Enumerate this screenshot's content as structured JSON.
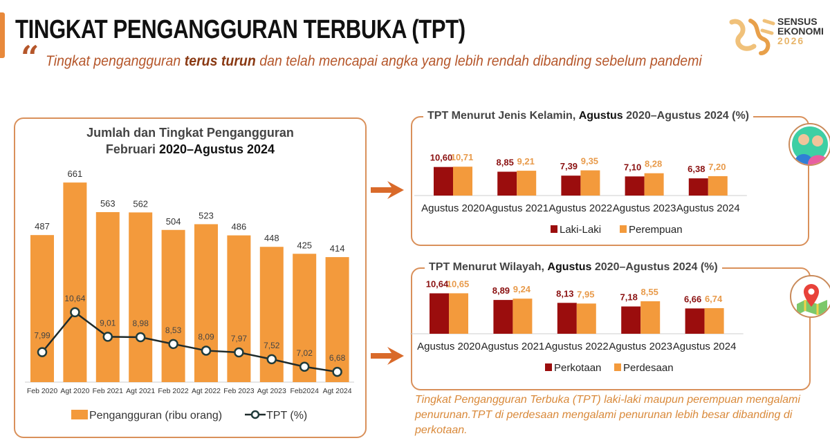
{
  "header": {
    "title": "TINGKAT PENGANGGURAN TERBUKA (TPT)",
    "subtitle_pre": "Tingkat pengangguran ",
    "subtitle_bold": "terus turun",
    "subtitle_post": " dan telah mencapai angka yang lebih rendah dibanding sebelum pandemi",
    "logo": {
      "line1": "SENSUS",
      "line2": "EKONOMI",
      "line3": "2026"
    },
    "quote_icon": "quote-icon"
  },
  "colors": {
    "orange": "#f39a3c",
    "dark_red": "#9b0d0d",
    "accent": "#e8893b",
    "line": "#1f2b2b"
  },
  "note": "Tingkat Pengangguran Terbuka (TPT) laki-laki maupun perempuan mengalami penurunan.TPT di perdesaan mengalami penurunan lebih besar dibanding di perkotaan.",
  "chart_data": [
    {
      "type": "bar+line",
      "title_line1": "Jumlah dan Tingkat Pengangguran",
      "title_line2_pre": "Februari ",
      "title_line2_bold": "2020–Agustus 2024",
      "categories": [
        "Feb 2020",
        "Agt 2020",
        "Feb 2021",
        "Agt 2021",
        "Feb 2022",
        "Agt 2022",
        "Feb 2023",
        "Agt 2023",
        "Feb2024",
        "Agt 2024"
      ],
      "series": [
        {
          "name": "Pengangguran (ribu orang)",
          "type": "bar",
          "values": [
            487,
            661,
            563,
            562,
            504,
            523,
            486,
            448,
            425,
            414
          ]
        },
        {
          "name": "TPT (%)",
          "type": "line",
          "values": [
            "7,99",
            "10,64",
            "9,01",
            "8,98",
            "8,53",
            "8,09",
            "7,97",
            "7,52",
            "7,02",
            "6,68"
          ]
        }
      ],
      "legend": "bottom",
      "grid": false
    },
    {
      "type": "bar",
      "title_pre": "TPT Menurut Jenis Kelamin, ",
      "title_bold": "Agustus",
      "title_post": " 2020–Agustus 2024 (%)",
      "icon": "people-icon",
      "categories": [
        "Agustus 2020",
        "Agustus 2021",
        "Agustus 2022",
        "Agustus 2023",
        "Agustus 2024"
      ],
      "series": [
        {
          "name": "Laki-Laki",
          "values": [
            "10,60",
            "8,85",
            "7,39",
            "7,10",
            "6,38"
          ]
        },
        {
          "name": "Perempuan",
          "values": [
            "10,71",
            "9,21",
            "9,35",
            "8,28",
            "7,20"
          ]
        }
      ],
      "legend": "bottom",
      "grid": false
    },
    {
      "type": "bar",
      "title_pre": "TPT Menurut Wilayah, ",
      "title_bold": "Agustus",
      "title_post": " 2020–Agustus 2024 (%)",
      "icon": "map-pin-icon",
      "categories": [
        "Agustus 2020",
        "Agustus 2021",
        "Agustus 2022",
        "Agustus 2023",
        "Agustus 2024"
      ],
      "series": [
        {
          "name": "Perkotaan",
          "values": [
            "10,64",
            "8,89",
            "8,13",
            "7,18",
            "6,66"
          ]
        },
        {
          "name": "Perdesaan",
          "values": [
            "10,65",
            "9,24",
            "7,95",
            "8,55",
            "6,74"
          ]
        }
      ],
      "legend": "bottom",
      "grid": false
    }
  ]
}
